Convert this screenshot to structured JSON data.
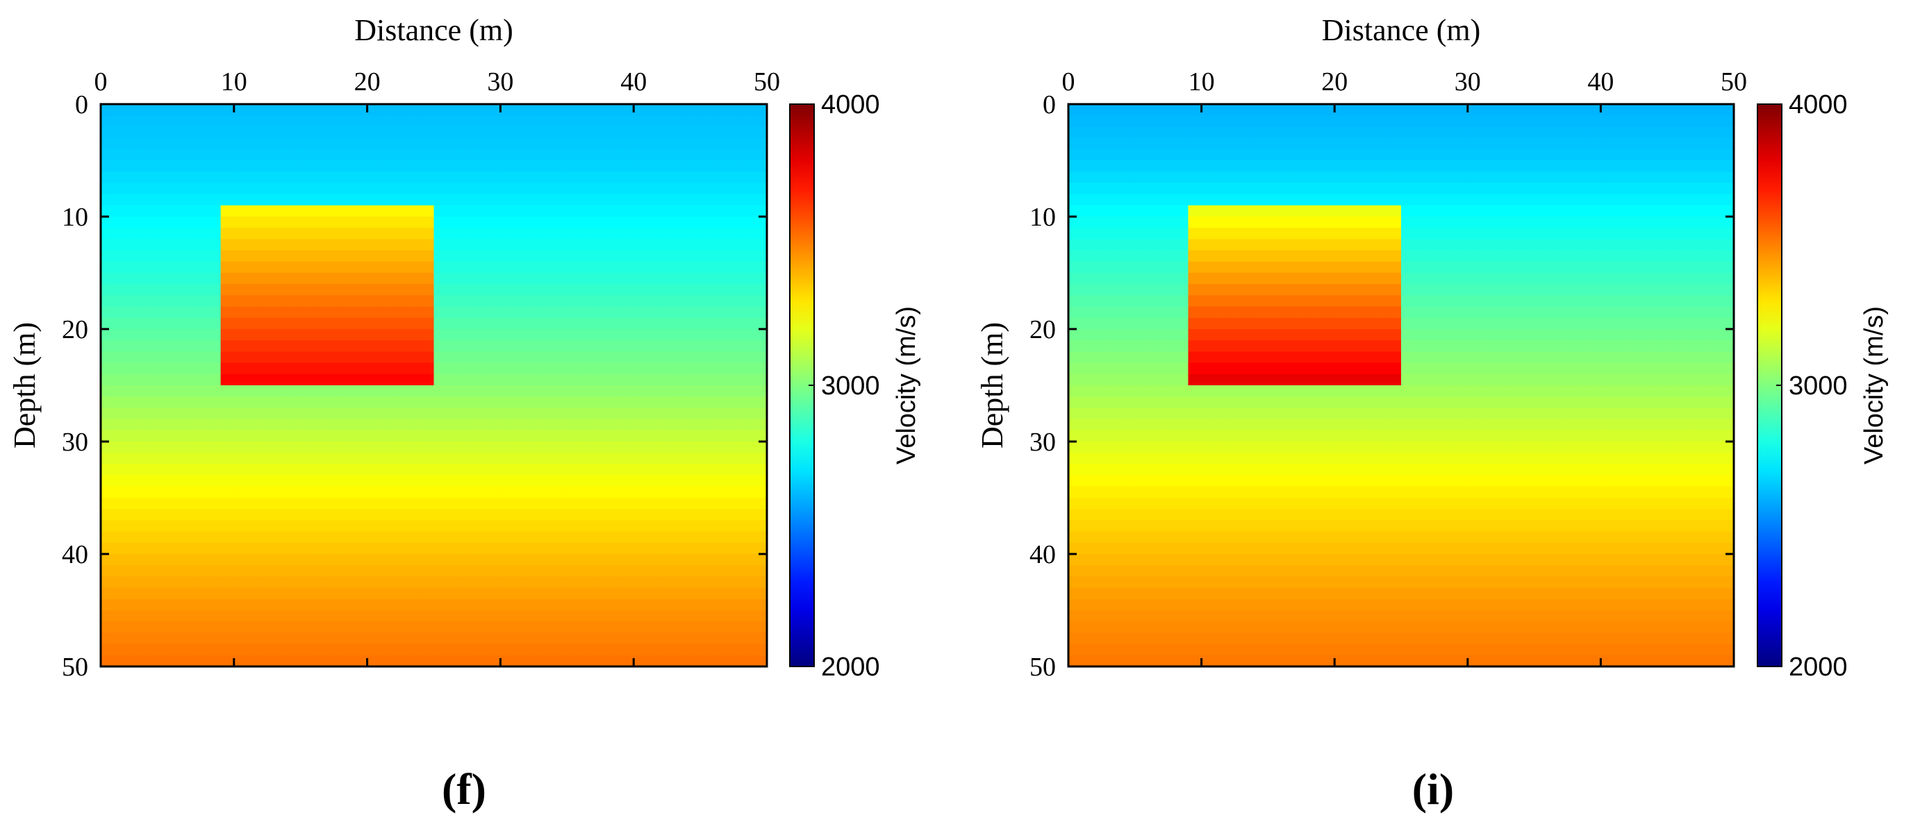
{
  "chart_data": [
    {
      "type": "heatmap",
      "panel_label": "(f)",
      "xlabel": "Distance (m)",
      "ylabel": "Depth (m)",
      "xlim": [
        0,
        50
      ],
      "ylim": [
        0,
        50
      ],
      "y_inverted": true,
      "x_axis_position": "top",
      "xticks": [
        0,
        10,
        20,
        30,
        40,
        50
      ],
      "yticks": [
        0,
        10,
        20,
        30,
        40,
        50
      ],
      "colorbar": {
        "label": "Velocity (m/s)",
        "min": 2000,
        "max": 4000,
        "ticks": [
          2000,
          3000,
          4000
        ],
        "colormap": "jet"
      },
      "background_velocity": {
        "depth": [
          0,
          5,
          10,
          15,
          20,
          25,
          30,
          35,
          40,
          45,
          50
        ],
        "value": [
          2620,
          2660,
          2740,
          2820,
          2920,
          3020,
          3150,
          3270,
          3370,
          3460,
          3530
        ]
      },
      "anomaly": {
        "x_range": [
          9,
          24.7
        ],
        "depth_range": [
          9,
          24.7
        ],
        "velocity_top": 3250,
        "velocity_bottom": 3750
      }
    },
    {
      "type": "heatmap",
      "panel_label": "(i)",
      "xlabel": "Distance (m)",
      "ylabel": "Depth (m)",
      "xlim": [
        0,
        50
      ],
      "ylim": [
        0,
        50
      ],
      "y_inverted": true,
      "x_axis_position": "top",
      "xticks": [
        0,
        10,
        20,
        30,
        40,
        50
      ],
      "yticks": [
        0,
        10,
        20,
        30,
        40,
        50
      ],
      "colorbar": {
        "label": "Velocity (m/s)",
        "min": 2000,
        "max": 4000,
        "ticks": [
          2000,
          3000,
          4000
        ],
        "colormap": "jet"
      },
      "background_velocity": {
        "depth": [
          0,
          5,
          10,
          15,
          20,
          25,
          30,
          35,
          40,
          45,
          50
        ],
        "value": [
          2600,
          2650,
          2760,
          2860,
          2960,
          3060,
          3180,
          3290,
          3380,
          3460,
          3520
        ]
      },
      "anomaly": {
        "x_range": [
          9,
          24.7
        ],
        "depth_range": [
          9,
          24.7
        ],
        "velocity_top": 3200,
        "velocity_bottom": 3800
      }
    }
  ]
}
